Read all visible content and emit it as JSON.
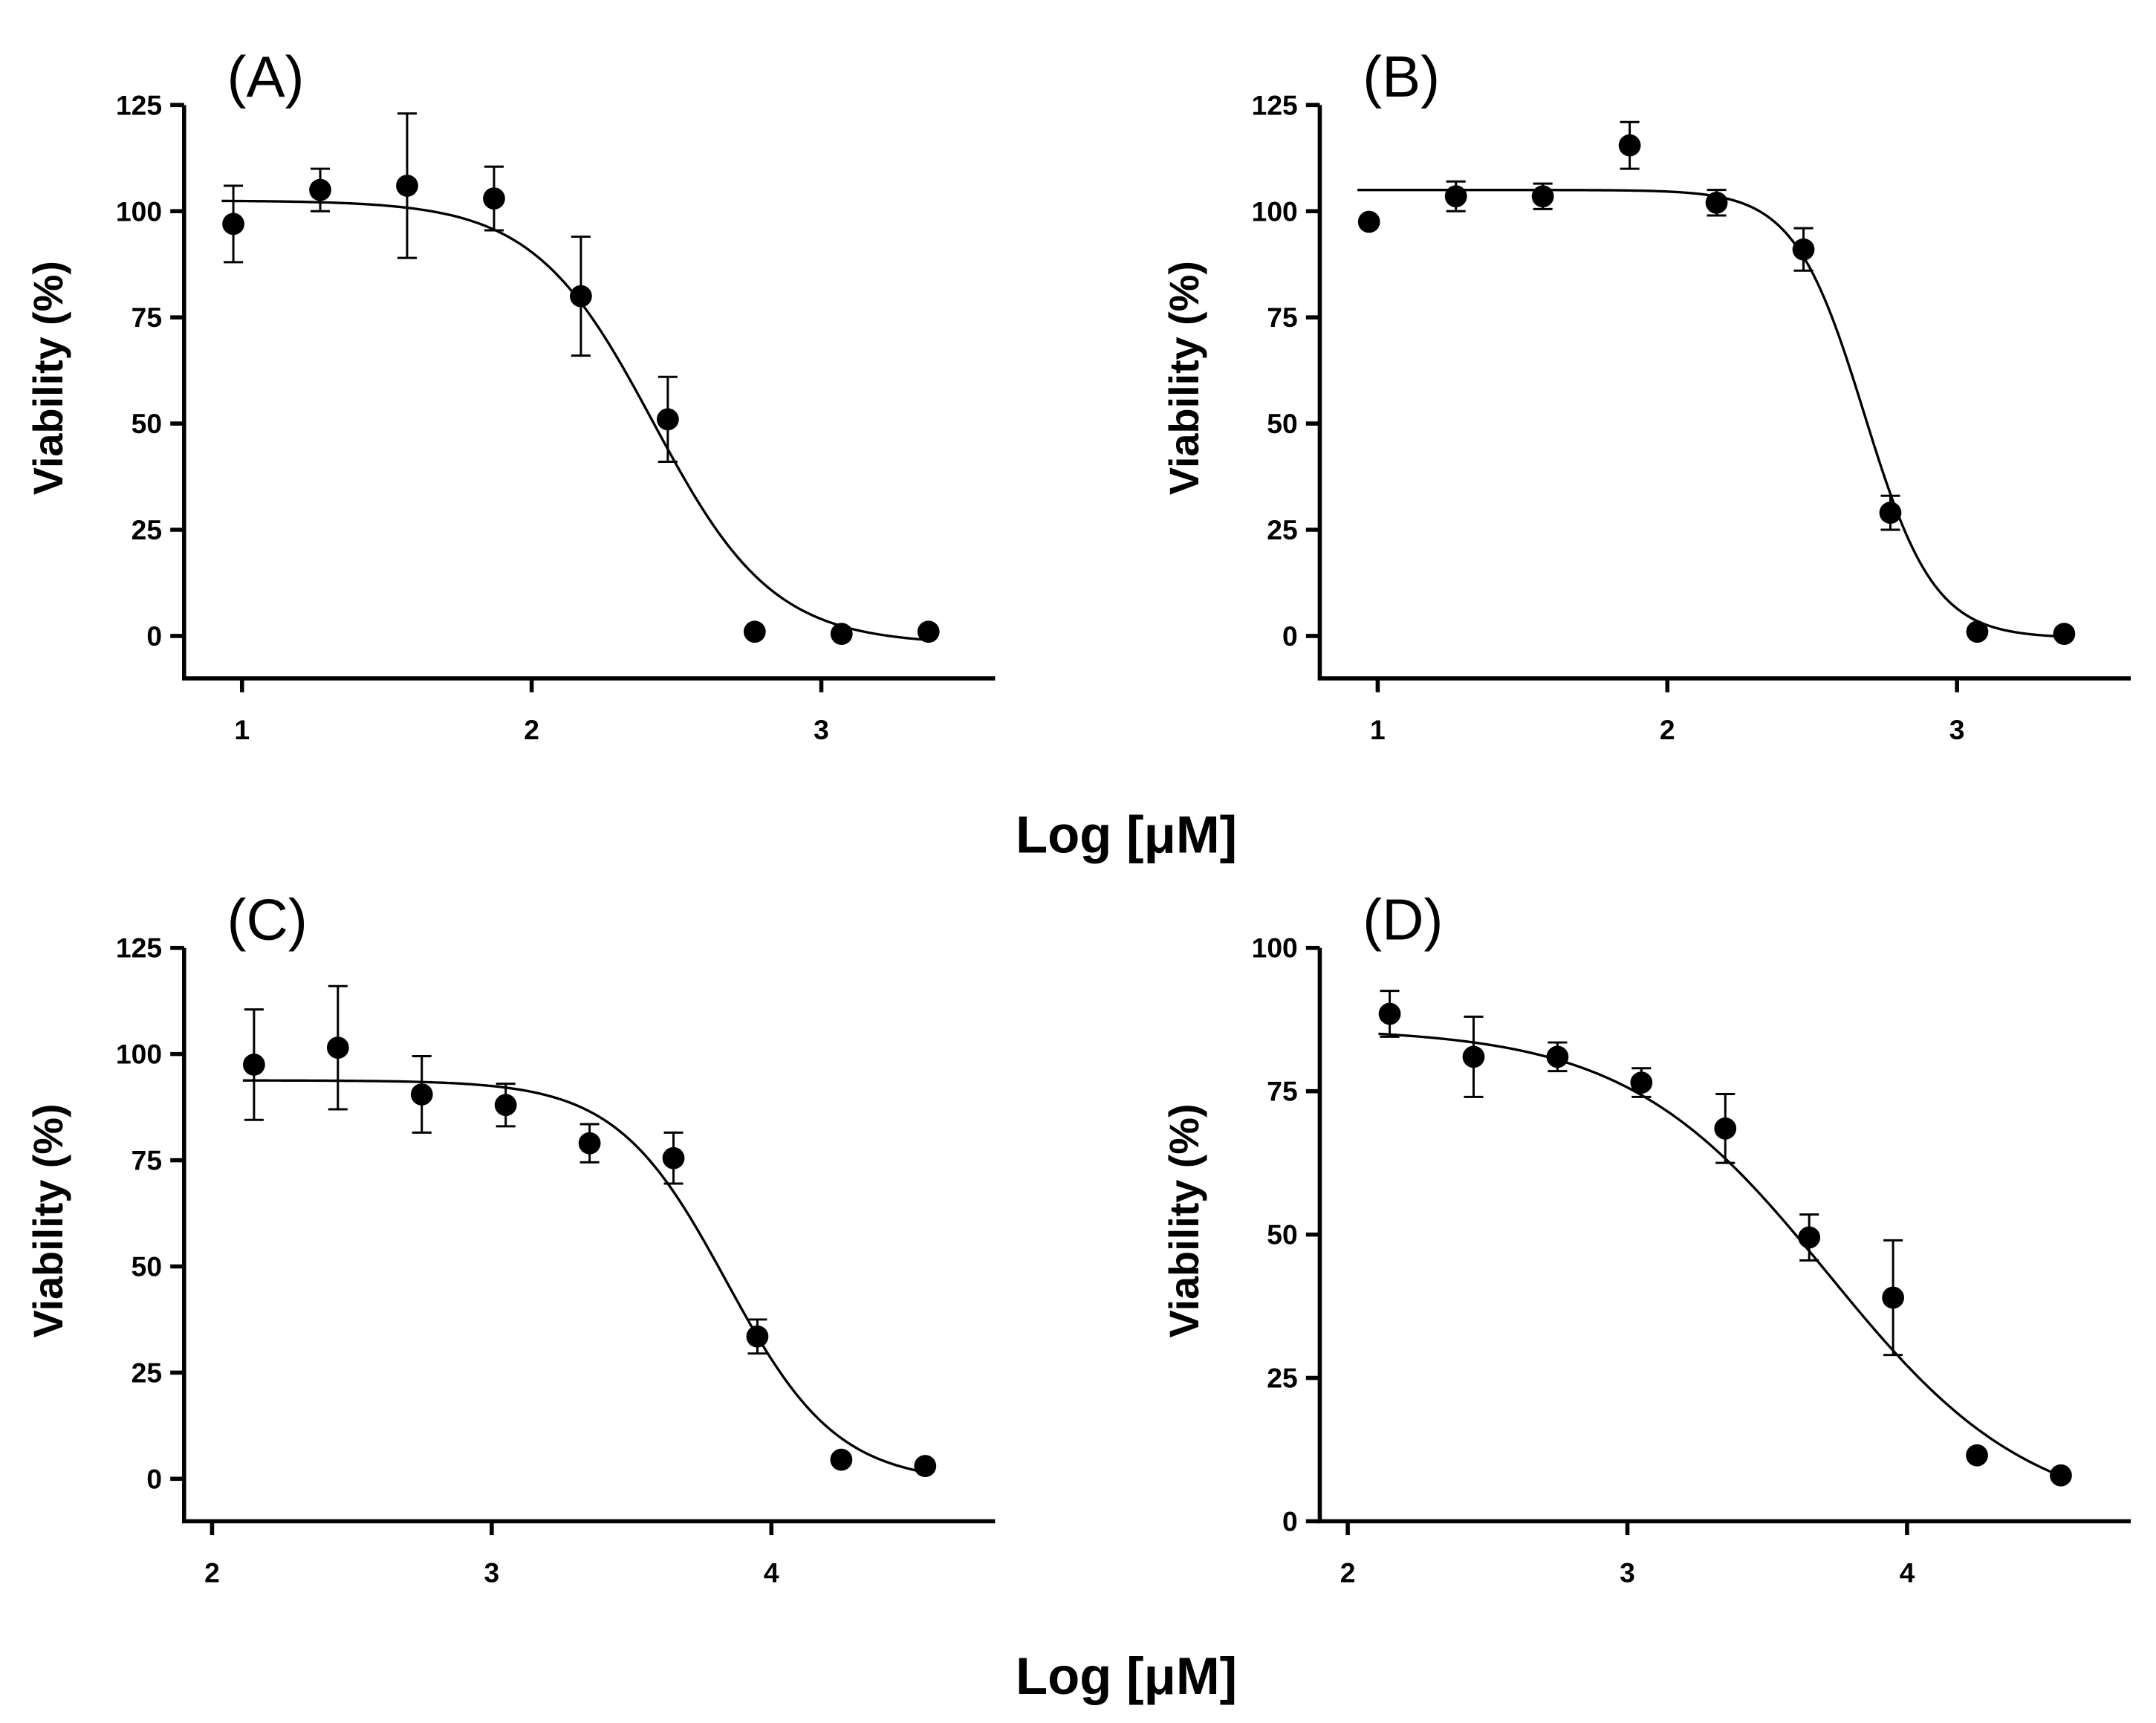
{
  "chart_data": [
    {
      "type": "scatter",
      "panel_label": "(A)",
      "xlabel": "Log [μM]",
      "ylabel": "Viability (%)",
      "xlim": [
        0.8,
        3.6
      ],
      "ylim": [
        -10,
        125
      ],
      "xticks": [
        1,
        2,
        3
      ],
      "yticks": [
        0,
        25,
        50,
        75,
        100,
        125
      ],
      "x": [
        0.97,
        1.27,
        1.57,
        1.87,
        2.17,
        2.47,
        2.77,
        3.07,
        3.37
      ],
      "y": [
        97,
        105,
        106,
        103,
        80,
        51,
        1,
        0.5,
        1
      ],
      "error": [
        9,
        5,
        17,
        7.5,
        14,
        10,
        0,
        0,
        0
      ],
      "fit": {
        "model": "four-parameter logistic",
        "top": 102.5,
        "bottom": -2,
        "logIC50": 2.42,
        "hill": -2.1
      }
    },
    {
      "type": "scatter",
      "panel_label": "(B)",
      "xlabel": "Log [μM]",
      "ylabel": "Viability (%)",
      "xlim": [
        0.8,
        3.6
      ],
      "ylim": [
        -10,
        125
      ],
      "xticks": [
        1,
        2,
        3
      ],
      "yticks": [
        0,
        25,
        50,
        75,
        100,
        125
      ],
      "x": [
        0.97,
        1.27,
        1.57,
        1.87,
        2.17,
        2.47,
        2.77,
        3.07,
        3.37
      ],
      "y": [
        97.5,
        103.5,
        103.5,
        115.5,
        102,
        91,
        29,
        1,
        0.5
      ],
      "error": [
        0,
        3.5,
        3,
        5.5,
        3,
        5,
        4,
        0,
        0
      ],
      "fit": {
        "model": "four-parameter logistic",
        "top": 105,
        "bottom": -0.5,
        "logIC50": 2.68,
        "hill": -3.6
      }
    },
    {
      "type": "scatter",
      "panel_label": "(C)",
      "xlabel": "Log [μM]",
      "ylabel": "Viability (%)",
      "xlim": [
        1.9,
        4.8
      ],
      "ylim": [
        -10,
        125
      ],
      "xticks": [
        2,
        3,
        4
      ],
      "yticks": [
        0,
        25,
        50,
        75,
        100,
        125
      ],
      "x": [
        2.15,
        2.45,
        2.75,
        3.05,
        3.35,
        3.65,
        3.95,
        4.25,
        4.55
      ],
      "y": [
        97.5,
        101.5,
        90.5,
        88,
        79,
        75.5,
        33.5,
        4.5,
        3
      ],
      "error": [
        13,
        14.5,
        9,
        5,
        4.5,
        6,
        4,
        0,
        0
      ],
      "fit": {
        "model": "four-parameter logistic",
        "top": 93.8,
        "bottom": -1,
        "logIC50": 3.84,
        "hill": -2.2
      }
    },
    {
      "type": "scatter",
      "panel_label": "(D)",
      "xlabel": "Log [μM]",
      "ylabel": "Viability (%)",
      "xlim": [
        1.9,
        4.8
      ],
      "ylim": [
        0,
        100
      ],
      "xticks": [
        2,
        3,
        4
      ],
      "yticks": [
        0,
        25,
        50,
        75,
        100
      ],
      "x": [
        2.15,
        2.45,
        2.75,
        3.05,
        3.35,
        3.65,
        3.95,
        4.25,
        4.55
      ],
      "y": [
        88.5,
        81,
        81,
        76.5,
        68.5,
        49.5,
        39,
        11.5,
        8
      ],
      "error": [
        4,
        7,
        2.5,
        2.5,
        6,
        4,
        10,
        0,
        0
      ],
      "fit": {
        "model": "four-parameter logistic",
        "top": 86,
        "bottom": 0,
        "logIC50": 3.72,
        "hill": -1.2
      }
    }
  ],
  "shared_xlabel": "Log [μM]"
}
